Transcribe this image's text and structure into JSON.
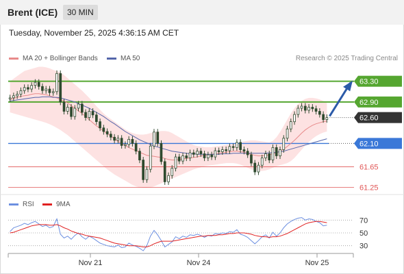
{
  "header": {
    "instrument": "Brent (ICE)",
    "timeframe": "30 MIN"
  },
  "datetime": "Tuesday, November 25, 2025 4:36:15 AM CET",
  "legend": {
    "ma20": "MA 20 + Bollinger Bands",
    "ma50": "MA 50",
    "rsi": "RSI",
    "rsi_ma": "9MA",
    "credit": "Research © 2025 Trading Central"
  },
  "colors": {
    "candle": "#2f4a2f",
    "ma20": "#e88a8a",
    "ma50": "#5566aa",
    "bollinger": "#fde2e2",
    "resistance": "#55a630",
    "support": "#3a78d8",
    "support_minor": "#e05555",
    "last": "#333333",
    "rsi": "#6c8fe0",
    "rsi_ma": "#e02020",
    "arrow": "#2b5aa8"
  },
  "chart_data": [
    {
      "type": "candlestick",
      "title": "Brent (ICE) 30 MIN",
      "x_tick_labels": [
        "Nov 21",
        "Nov 24",
        "Nov 25"
      ],
      "ylim": [
        61.1,
        63.6
      ],
      "levels": [
        {
          "value": 63.3,
          "label": "63.30",
          "kind": "resistance"
        },
        {
          "value": 62.9,
          "label": "62.90",
          "kind": "resistance"
        },
        {
          "value": 62.6,
          "label": "62.60",
          "kind": "last"
        },
        {
          "value": 62.1,
          "label": "62.10",
          "kind": "support"
        },
        {
          "value": 61.65,
          "label": "61.65",
          "kind": "support_minor"
        },
        {
          "value": 61.25,
          "label": "61.25",
          "kind": "support_minor"
        }
      ],
      "close": [
        62.98,
        63.02,
        63.05,
        63.12,
        63.18,
        63.15,
        63.22,
        63.28,
        63.2,
        63.12,
        63.15,
        63.08,
        63.1,
        63.45,
        62.9,
        62.72,
        62.8,
        62.62,
        62.78,
        62.86,
        62.7,
        62.6,
        62.72,
        62.65,
        62.52,
        62.4,
        62.33,
        62.28,
        62.22,
        62.16,
        62.2,
        62.06,
        62.08,
        62.18,
        62.1,
        61.95,
        61.78,
        61.4,
        61.6,
        62.05,
        62.32,
        62.1,
        61.75,
        61.36,
        61.48,
        61.62,
        61.84,
        61.76,
        61.86,
        61.82,
        61.92,
        61.89,
        61.95,
        61.9,
        61.82,
        61.88,
        61.84,
        61.96,
        61.94,
        61.98,
        61.96,
        62.04,
        62.02,
        62.12,
        61.98,
        61.95,
        61.88,
        61.72,
        61.55,
        61.68,
        61.82,
        61.9,
        61.78,
        62.02,
        61.86,
        61.98,
        62.2,
        62.38,
        62.52,
        62.66,
        62.78,
        62.82,
        62.74,
        62.8,
        62.77,
        62.72,
        62.66,
        62.56,
        62.6
      ],
      "open": [
        62.96,
        62.98,
        63.02,
        63.05,
        63.12,
        63.18,
        63.15,
        63.22,
        63.28,
        63.2,
        63.12,
        63.15,
        63.08,
        63.1,
        63.45,
        62.9,
        62.72,
        62.8,
        62.62,
        62.78,
        62.86,
        62.7,
        62.6,
        62.72,
        62.65,
        62.52,
        62.4,
        62.33,
        62.28,
        62.22,
        62.16,
        62.2,
        62.06,
        62.08,
        62.18,
        62.1,
        61.95,
        61.78,
        61.4,
        61.6,
        62.05,
        62.32,
        62.1,
        61.75,
        61.36,
        61.48,
        61.62,
        61.84,
        61.76,
        61.86,
        61.82,
        61.92,
        61.89,
        61.95,
        61.9,
        61.82,
        61.88,
        61.84,
        61.96,
        61.94,
        61.98,
        61.96,
        62.04,
        62.02,
        62.12,
        61.98,
        61.95,
        61.88,
        61.72,
        61.55,
        61.68,
        61.82,
        61.9,
        61.78,
        62.02,
        61.86,
        61.98,
        62.2,
        62.38,
        62.52,
        62.66,
        62.78,
        62.82,
        62.74,
        62.8,
        62.77,
        62.72,
        62.66,
        62.56
      ],
      "ma20": [
        62.95,
        62.97,
        62.99,
        63.01,
        63.02,
        63.03,
        63.05,
        63.06,
        63.06,
        63.05,
        63.04,
        63.02,
        63.0,
        62.98,
        62.95,
        62.92,
        62.88,
        62.83,
        62.78,
        62.73,
        62.68,
        62.62,
        62.56,
        62.5,
        62.44,
        62.39,
        62.34,
        62.29,
        62.24,
        62.19,
        62.14,
        62.1,
        62.06,
        62.02,
        61.99,
        61.96,
        61.93,
        61.9,
        61.87,
        61.86,
        61.85,
        61.84,
        61.83,
        61.81,
        61.79,
        61.78,
        61.78,
        61.79,
        61.8,
        61.81,
        61.82,
        61.83,
        61.84,
        61.86,
        61.87,
        61.88,
        61.89,
        61.9,
        61.91,
        61.92,
        61.93,
        61.94,
        61.95,
        61.95,
        61.94,
        61.93,
        61.91,
        61.89,
        61.87,
        61.86,
        61.86,
        61.87,
        61.88,
        61.9,
        61.92,
        61.95,
        61.99,
        62.04,
        62.1,
        62.16,
        62.23,
        62.3,
        62.36,
        62.41,
        62.45,
        62.48,
        62.5,
        62.52,
        62.53
      ],
      "ma50": [
        62.92,
        62.93,
        62.94,
        62.95,
        62.96,
        62.97,
        62.98,
        62.99,
        62.99,
        63.0,
        63.0,
        63.0,
        62.99,
        62.99,
        62.98,
        62.96,
        62.94,
        62.92,
        62.9,
        62.87,
        62.84,
        62.81,
        62.78,
        62.74,
        62.7,
        62.66,
        62.62,
        62.57,
        62.52,
        62.48,
        62.43,
        62.38,
        62.33,
        62.29,
        62.25,
        62.21,
        62.17,
        62.14,
        62.11,
        62.08,
        62.05,
        62.03,
        62.01,
        61.99,
        61.97,
        61.95,
        61.94,
        61.93,
        61.92,
        61.91,
        61.9,
        61.9,
        61.89,
        61.89,
        61.89,
        61.89,
        61.89,
        61.89,
        61.89,
        61.9,
        61.9,
        61.9,
        61.91,
        61.91,
        61.91,
        61.91,
        61.91,
        61.91,
        61.91,
        61.91,
        61.91,
        61.91,
        61.92,
        61.92,
        61.93,
        61.94,
        61.95,
        61.97,
        61.99,
        62.01,
        62.03,
        62.05,
        62.07,
        62.09,
        62.11,
        62.13,
        62.15,
        62.17,
        62.19
      ],
      "bb_upper": [
        63.3,
        63.35,
        63.4,
        63.45,
        63.5,
        63.52,
        63.54,
        63.56,
        63.58,
        63.58,
        63.57,
        63.55,
        63.52,
        63.5,
        63.47,
        63.42,
        63.36,
        63.3,
        63.24,
        63.18,
        63.12,
        63.05,
        62.98,
        62.9,
        62.82,
        62.75,
        62.68,
        62.62,
        62.57,
        62.52,
        62.47,
        62.42,
        62.37,
        62.33,
        62.3,
        62.28,
        62.27,
        62.27,
        62.28,
        62.3,
        62.32,
        62.33,
        62.34,
        62.34,
        62.33,
        62.3,
        62.26,
        62.22,
        62.18,
        62.14,
        62.1,
        62.07,
        62.05,
        62.04,
        62.03,
        62.03,
        62.03,
        62.04,
        62.05,
        62.06,
        62.07,
        62.08,
        62.09,
        62.1,
        62.12,
        62.14,
        62.15,
        62.16,
        62.16,
        62.15,
        62.14,
        62.13,
        62.12,
        62.15,
        62.22,
        62.32,
        62.44,
        62.56,
        62.68,
        62.78,
        62.86,
        62.92,
        62.96,
        62.98,
        62.98,
        62.97,
        62.95,
        62.92,
        62.88
      ],
      "bb_lower": [
        62.7,
        62.68,
        62.66,
        62.64,
        62.62,
        62.6,
        62.58,
        62.56,
        62.54,
        62.52,
        62.5,
        62.47,
        62.44,
        62.4,
        62.36,
        62.31,
        62.26,
        62.2,
        62.14,
        62.08,
        62.02,
        61.96,
        61.9,
        61.84,
        61.78,
        61.72,
        61.66,
        61.6,
        61.55,
        61.5,
        61.46,
        61.42,
        61.38,
        61.34,
        61.3,
        61.27,
        61.25,
        61.24,
        61.24,
        61.25,
        61.27,
        61.3,
        61.33,
        61.36,
        61.39,
        61.42,
        61.45,
        61.48,
        61.51,
        61.54,
        61.57,
        61.6,
        61.62,
        61.64,
        61.66,
        61.67,
        61.68,
        61.69,
        61.7,
        61.71,
        61.72,
        61.72,
        61.72,
        61.71,
        61.69,
        61.66,
        61.63,
        61.6,
        61.58,
        61.57,
        61.57,
        61.58,
        61.6,
        61.63,
        61.66,
        61.68,
        61.7,
        61.72,
        61.76,
        61.82,
        61.9,
        61.98,
        62.06,
        62.13,
        62.19,
        62.24,
        62.28,
        62.31,
        62.33
      ],
      "projection": {
        "from": 62.6,
        "to": 63.3
      }
    },
    {
      "type": "line",
      "title": "RSI",
      "ylim": [
        20,
        80
      ],
      "y_tick_labels": [
        "70",
        "50",
        "30"
      ],
      "y_ticks": [
        70,
        50,
        30
      ],
      "series": [
        {
          "name": "RSI",
          "values": [
            52,
            58,
            60,
            62,
            65,
            63,
            66,
            68,
            64,
            60,
            62,
            58,
            60,
            72,
            48,
            42,
            45,
            40,
            46,
            50,
            44,
            40,
            45,
            42,
            38,
            34,
            32,
            30,
            29,
            28,
            31,
            27,
            28,
            34,
            31,
            29,
            26,
            22,
            30,
            45,
            54,
            47,
            38,
            28,
            32,
            36,
            44,
            41,
            45,
            43,
            47,
            46,
            48,
            46,
            43,
            46,
            45,
            49,
            48,
            50,
            49,
            52,
            51,
            55,
            48,
            46,
            43,
            38,
            33,
            38,
            44,
            47,
            42,
            51,
            45,
            50,
            58,
            64,
            68,
            71,
            73,
            74,
            70,
            72,
            71,
            68,
            66,
            61,
            62
          ]
        },
        {
          "name": "9MA",
          "values": [
            50,
            51,
            53,
            55,
            57,
            59,
            61,
            62,
            63,
            63,
            63,
            62,
            62,
            63,
            61,
            58,
            56,
            53,
            51,
            49,
            48,
            46,
            45,
            44,
            43,
            42,
            40,
            38,
            36,
            34,
            33,
            32,
            31,
            30,
            30,
            30,
            29,
            28,
            28,
            30,
            33,
            35,
            37,
            37,
            37,
            37,
            38,
            39,
            40,
            41,
            42,
            43,
            44,
            45,
            45,
            46,
            46,
            46,
            47,
            47,
            48,
            49,
            49,
            50,
            50,
            50,
            49,
            48,
            46,
            45,
            44,
            44,
            43,
            44,
            44,
            45,
            47,
            49,
            52,
            55,
            58,
            61,
            64,
            66,
            67,
            68,
            68,
            67,
            66
          ]
        }
      ]
    }
  ]
}
